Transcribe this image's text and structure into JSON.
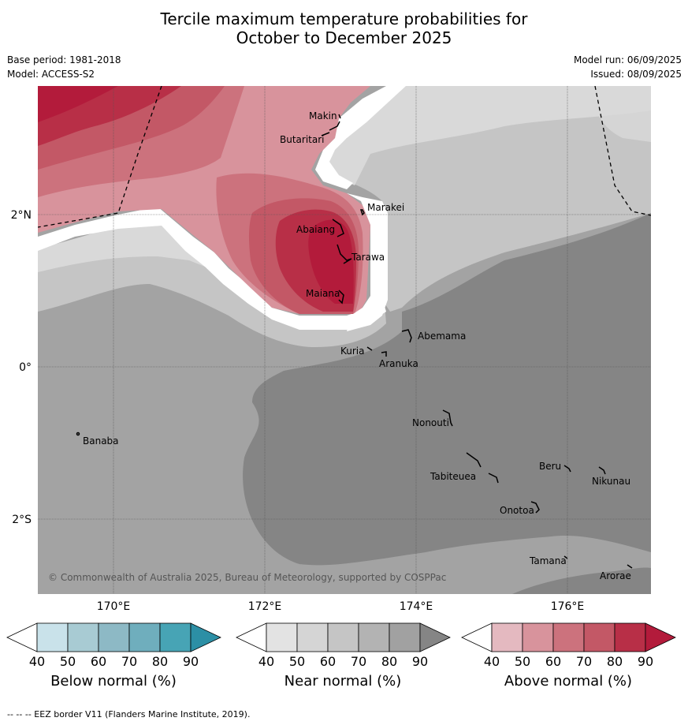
{
  "title_line1": "Tercile maximum temperature probabilities for",
  "title_line2": "October to December 2025",
  "meta_left": {
    "base_period": "Base period: 1981-2018",
    "model": "Model: ACCESS-S2"
  },
  "meta_right": {
    "model_run": "Model run: 06/09/2025",
    "issued": "Issued: 08/09/2025"
  },
  "axes": {
    "lat_labels": [
      "2°N",
      "0°",
      "2°S"
    ],
    "lon_labels": [
      "170°E",
      "172°E",
      "174°E",
      "176°E"
    ]
  },
  "places": [
    {
      "name": "Makin"
    },
    {
      "name": "Butaritari"
    },
    {
      "name": "Marakei"
    },
    {
      "name": "Abaiang"
    },
    {
      "name": "Tarawa"
    },
    {
      "name": "Maiana"
    },
    {
      "name": "Abemama"
    },
    {
      "name": "Kuria"
    },
    {
      "name": "Aranuka"
    },
    {
      "name": "Banaba"
    },
    {
      "name": "Nonouti"
    },
    {
      "name": "Beru"
    },
    {
      "name": "Tabiteuea"
    },
    {
      "name": "Nikunau"
    },
    {
      "name": "Onotoa"
    },
    {
      "name": "Tamana"
    },
    {
      "name": "Arorae"
    }
  ],
  "copyright": "© Commonwealth of Australia 2025, Bureau of Meteorology, supported by COSPPac",
  "colorbars": [
    {
      "label": "Below normal (%)",
      "ticks": [
        "40",
        "50",
        "60",
        "70",
        "80",
        "90"
      ],
      "colors": [
        "#ffffff",
        "#c9e2ea",
        "#a8cbd3",
        "#8db9c5",
        "#6faebd",
        "#47a4b5",
        "#2c8fa5"
      ]
    },
    {
      "label": "Near normal (%)",
      "ticks": [
        "40",
        "50",
        "60",
        "70",
        "80",
        "90"
      ],
      "colors": [
        "#ffffff",
        "#e3e3e3",
        "#d5d5d5",
        "#c5c5c5",
        "#b3b3b3",
        "#a1a1a1",
        "#858585"
      ]
    },
    {
      "label": "Above normal (%)",
      "ticks": [
        "40",
        "50",
        "60",
        "70",
        "80",
        "90"
      ],
      "colors": [
        "#ffffff",
        "#e4b9c0",
        "#d8939c",
        "#cc727d",
        "#c35866",
        "#b82f47",
        "#b31b3b"
      ]
    }
  ],
  "footer": "--  --  -- EEZ border V11 (Flanders Marine Institute, 2019)."
}
